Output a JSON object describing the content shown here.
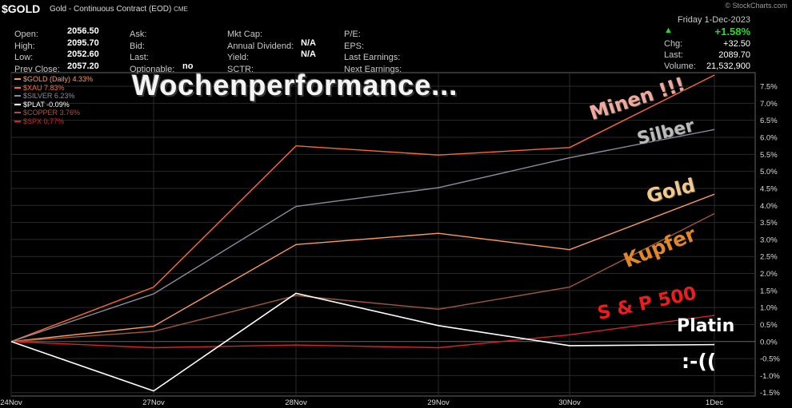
{
  "header": {
    "ticker": "$GOLD",
    "title": "Gold - Continuous Contract (EOD)",
    "exchange": "CME",
    "brand": "© StockCharts.com",
    "date": "Friday 1-Dec-2023"
  },
  "quote": {
    "col1": [
      {
        "label": "Open:",
        "value": "2056.50"
      },
      {
        "label": "High:",
        "value": "2095.70"
      },
      {
        "label": "Low:",
        "value": "2052.60"
      },
      {
        "label": "Prev Close:",
        "value": "2057.20"
      }
    ],
    "col2": [
      {
        "label": "Ask:",
        "value": ""
      },
      {
        "label": "Bid:",
        "value": ""
      },
      {
        "label": "Last:",
        "value": ""
      },
      {
        "label": "Optionable:",
        "value": "no"
      }
    ],
    "col3": [
      {
        "label": "Mkt Cap:",
        "value": ""
      },
      {
        "label": "Annual Dividend:",
        "value": "N/A"
      },
      {
        "label": "Yield:",
        "value": "N/A"
      },
      {
        "label": "SCTR:",
        "value": ""
      }
    ],
    "col4": [
      {
        "label": "P/E:",
        "value": ""
      },
      {
        "label": "EPS:",
        "value": ""
      },
      {
        "label": "Last Earnings:",
        "value": ""
      },
      {
        "label": "Next Earnings:",
        "value": ""
      }
    ],
    "change_pct": "+1.58%",
    "change_arrow": "▲",
    "chg_label": "Chg:",
    "chg_value": "+32.50",
    "last_label": "Last:",
    "last_value": "2089.70",
    "volume_label": "Volume:",
    "volume_value": "21,532,900"
  },
  "overlay_title": "Wochenperformance...",
  "annotations": {
    "minen": "Minen !!!",
    "silber": "Silber",
    "gold": "Gold",
    "kupfer": "Kupfer",
    "spx": "S & P 500",
    "platin": "Platin",
    "sad": ":-(("
  },
  "colors": {
    "gold": "#ff9a5a",
    "xau": "#ff6a2a",
    "silver": "#8c8c9c",
    "plat": "#ffffff",
    "copper": "#a0583a",
    "spx": "#e02020"
  },
  "chart_data": {
    "type": "line",
    "x": [
      "24Nov",
      "27Nov",
      "28Nov",
      "29Nov",
      "30Nov",
      "1Dec"
    ],
    "yunit": "%",
    "ylim": [
      -1.6,
      7.9
    ],
    "yticks": [
      "7.5%",
      "7.0%",
      "6.5%",
      "6.0%",
      "5.5%",
      "5.0%",
      "4.5%",
      "4.0%",
      "3.5%",
      "3.0%",
      "2.5%",
      "2.0%",
      "1.5%",
      "1.0%",
      "0.5%",
      "0.0%",
      "-0.5%",
      "-1.0%",
      "-1.5%"
    ],
    "ytick_values": [
      7.5,
      7.0,
      6.5,
      6.0,
      5.5,
      5.0,
      4.5,
      4.0,
      3.5,
      3.0,
      2.5,
      2.0,
      1.5,
      1.0,
      0.5,
      0.0,
      -0.5,
      -1.0,
      -1.5
    ],
    "grid": true,
    "legend_position": "top-left",
    "series": [
      {
        "key": "xau",
        "name": "$XAU 7.83%",
        "values": [
          0,
          1.6,
          5.75,
          5.48,
          5.7,
          7.83
        ]
      },
      {
        "key": "silver",
        "name": "$SILVER 6.23%",
        "values": [
          0,
          1.4,
          3.97,
          4.52,
          5.4,
          6.23
        ]
      },
      {
        "key": "gold",
        "name": "$GOLD (Daily) 4.33%",
        "values": [
          0,
          0.45,
          2.85,
          3.18,
          2.7,
          4.33
        ]
      },
      {
        "key": "copper",
        "name": "$COPPER 3.76%",
        "values": [
          0,
          0.3,
          1.35,
          0.95,
          1.6,
          3.76
        ]
      },
      {
        "key": "spx",
        "name": "$SPX 0.77%",
        "values": [
          0,
          -0.18,
          -0.1,
          -0.18,
          0.2,
          0.77
        ]
      },
      {
        "key": "plat",
        "name": "$PLAT -0.09%",
        "values": [
          0,
          -1.45,
          1.42,
          0.47,
          -0.12,
          -0.09
        ]
      }
    ],
    "legend_order": [
      "gold",
      "xau",
      "silver",
      "plat",
      "copper",
      "spx"
    ]
  }
}
